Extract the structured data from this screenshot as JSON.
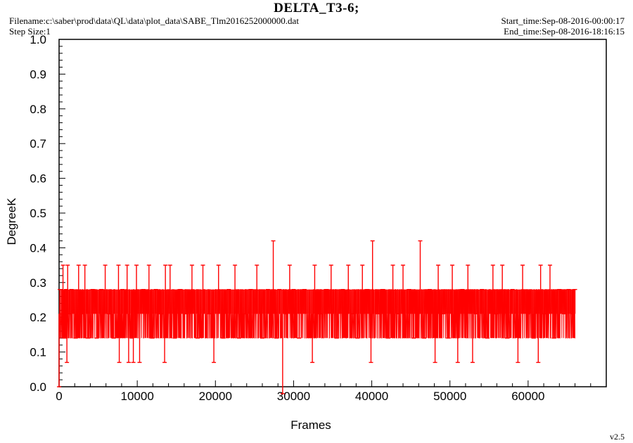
{
  "header": {
    "title": "DELTA_T3-6;",
    "filename": "Filename:c:\\saber\\prod\\data\\QL\\data\\plot_data\\SABE_Tlm2016252000000.dat",
    "step_size": "Step Size:1",
    "start_time": "Start_time:Sep-08-2016-00:00:17",
    "end_time": "End_time:Sep-08-2016-18:16:15",
    "version": "v2.5"
  },
  "chart_data": {
    "type": "line",
    "title": "DELTA_T3-6;",
    "xlabel": "Frames",
    "ylabel": "DegreeK",
    "xlim": [
      0,
      70000
    ],
    "ylim": [
      0.0,
      1.0
    ],
    "x_ticks": [
      0,
      10000,
      20000,
      30000,
      40000,
      50000,
      60000
    ],
    "x_tick_labels": [
      "0",
      "10000",
      "20000",
      "30000",
      "40000",
      "50000",
      "60000"
    ],
    "y_ticks": [
      0.0,
      0.1,
      0.2,
      0.3,
      0.4,
      0.5,
      0.6,
      0.7,
      0.8,
      0.9,
      1.0
    ],
    "y_tick_labels": [
      "0.0",
      "0.1",
      "0.2",
      "0.3",
      "0.4",
      "0.5",
      "0.6",
      "0.7",
      "0.8",
      "0.9",
      "1.0"
    ],
    "grid": false,
    "color": "#ff0000",
    "series": [
      {
        "points": [
          [
            0,
            0.0
          ],
          [
            100,
            0.28
          ],
          [
            300,
            0.21
          ],
          [
            500,
            0.35
          ],
          [
            700,
            0.14
          ],
          [
            900,
            0.28
          ],
          [
            1000,
            0.07
          ],
          [
            1100,
            0.35
          ],
          [
            1300,
            0.21
          ],
          [
            1600,
            0.28
          ],
          [
            2100,
            0.14
          ],
          [
            2500,
            0.35
          ],
          [
            2900,
            0.21
          ],
          [
            3300,
            0.35
          ],
          [
            3700,
            0.14
          ],
          [
            4300,
            0.28
          ],
          [
            4800,
            0.14
          ],
          [
            5400,
            0.28
          ],
          [
            5900,
            0.35
          ],
          [
            6400,
            0.21
          ],
          [
            7000,
            0.14
          ],
          [
            7600,
            0.35
          ],
          [
            7700,
            0.07
          ],
          [
            8100,
            0.28
          ],
          [
            8700,
            0.35
          ],
          [
            8900,
            0.07
          ],
          [
            9300,
            0.14
          ],
          [
            9500,
            0.07
          ],
          [
            9900,
            0.35
          ],
          [
            10300,
            0.07
          ],
          [
            10800,
            0.28
          ],
          [
            11500,
            0.35
          ],
          [
            11900,
            0.14
          ],
          [
            12400,
            0.28
          ],
          [
            13000,
            0.21
          ],
          [
            13500,
            0.07
          ],
          [
            13600,
            0.35
          ],
          [
            14200,
            0.35
          ],
          [
            14800,
            0.14
          ],
          [
            15500,
            0.28
          ],
          [
            16300,
            0.21
          ],
          [
            17000,
            0.35
          ],
          [
            17700,
            0.14
          ],
          [
            18400,
            0.35
          ],
          [
            19200,
            0.21
          ],
          [
            19800,
            0.07
          ],
          [
            20400,
            0.35
          ],
          [
            21000,
            0.14
          ],
          [
            21700,
            0.28
          ],
          [
            22500,
            0.35
          ],
          [
            23000,
            0.14
          ],
          [
            23700,
            0.21
          ],
          [
            24500,
            0.28
          ],
          [
            25300,
            0.35
          ],
          [
            26000,
            0.14
          ],
          [
            26700,
            0.28
          ],
          [
            27400,
            0.42
          ],
          [
            27800,
            0.14
          ],
          [
            28200,
            0.28
          ],
          [
            28600,
            -0.02
          ],
          [
            29000,
            0.21
          ],
          [
            29500,
            0.35
          ],
          [
            30000,
            0.28
          ],
          [
            30700,
            0.14
          ],
          [
            31400,
            0.28
          ],
          [
            32400,
            0.07
          ],
          [
            32700,
            0.35
          ],
          [
            33400,
            0.21
          ],
          [
            34200,
            0.28
          ],
          [
            34800,
            0.35
          ],
          [
            35500,
            0.14
          ],
          [
            36300,
            0.28
          ],
          [
            37000,
            0.35
          ],
          [
            37600,
            0.21
          ],
          [
            38200,
            0.14
          ],
          [
            38800,
            0.35
          ],
          [
            39400,
            0.28
          ],
          [
            39900,
            0.07
          ],
          [
            40100,
            0.42
          ],
          [
            40700,
            0.21
          ],
          [
            41400,
            0.28
          ],
          [
            42100,
            0.14
          ],
          [
            42700,
            0.35
          ],
          [
            43400,
            0.21
          ],
          [
            44000,
            0.35
          ],
          [
            44800,
            0.28
          ],
          [
            45400,
            0.14
          ],
          [
            46200,
            0.42
          ],
          [
            46700,
            0.14
          ],
          [
            47400,
            0.28
          ],
          [
            48100,
            0.07
          ],
          [
            48500,
            0.35
          ],
          [
            49100,
            0.21
          ],
          [
            49800,
            0.14
          ],
          [
            50300,
            0.35
          ],
          [
            51000,
            0.07
          ],
          [
            51600,
            0.28
          ],
          [
            52300,
            0.35
          ],
          [
            52900,
            0.07
          ],
          [
            53400,
            0.21
          ],
          [
            54100,
            0.28
          ],
          [
            54800,
            0.14
          ],
          [
            55500,
            0.35
          ],
          [
            56000,
            0.21
          ],
          [
            56700,
            0.35
          ],
          [
            57300,
            0.14
          ],
          [
            58000,
            0.28
          ],
          [
            58700,
            0.07
          ],
          [
            59300,
            0.35
          ],
          [
            60000,
            0.21
          ],
          [
            60700,
            0.14
          ],
          [
            61300,
            0.07
          ],
          [
            61600,
            0.35
          ],
          [
            62100,
            0.21
          ],
          [
            62800,
            0.35
          ],
          [
            63300,
            0.14
          ],
          [
            64000,
            0.28
          ],
          [
            64600,
            0.21
          ],
          [
            65200,
            0.28
          ],
          [
            65700,
            0.21
          ],
          [
            66000,
            0.28
          ]
        ]
      }
    ]
  }
}
